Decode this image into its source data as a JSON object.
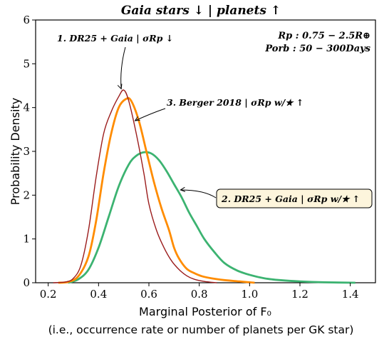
{
  "chart_data": {
    "type": "line",
    "title": "Gaia stars ↓ | planets ↑",
    "xlabel": "Marginal Posterior of F₀",
    "xlabel_sub": "(i.e., occurrence rate or number of planets per GK star)",
    "ylabel": "Probability Density",
    "xlim": [
      0.15,
      1.5
    ],
    "ylim": [
      0,
      6
    ],
    "xticks": [
      "0.2",
      "0.4",
      "0.6",
      "0.8",
      "1.0",
      "1.2",
      "1.4"
    ],
    "yticks": [
      "0",
      "1",
      "2",
      "3",
      "4",
      "5",
      "6"
    ],
    "grid": false,
    "params_box": {
      "line1": "Rp : 0.75 − 2.5R⊕",
      "line2": "Porb : 50 − 300Days"
    },
    "annotations": [
      {
        "text": "1. DR25 + Gaia | σRp ↓",
        "x": 0.49,
        "y": 4.38
      },
      {
        "text": "3. Berger 2018 | σRp w/★ ↑",
        "x": 0.545,
        "y": 3.7
      },
      {
        "text": "2. DR25 + Gaia | σRp w/★ ↑",
        "x": 0.72,
        "y": 2.12
      }
    ],
    "series": [
      {
        "color": "#9b1c1c",
        "x": [
          0.22,
          0.27,
          0.3,
          0.33,
          0.36,
          0.39,
          0.42,
          0.45,
          0.48,
          0.5,
          0.52,
          0.55,
          0.58,
          0.6,
          0.63,
          0.66,
          0.69,
          0.72,
          0.75,
          0.78,
          0.82,
          0.87
        ],
        "y": [
          0.0,
          0.02,
          0.1,
          0.4,
          1.2,
          2.4,
          3.4,
          3.9,
          4.25,
          4.4,
          4.15,
          3.4,
          2.5,
          1.8,
          1.2,
          0.8,
          0.5,
          0.3,
          0.16,
          0.08,
          0.03,
          0.0
        ]
      },
      {
        "color": "#ff8c00",
        "x": [
          0.24,
          0.28,
          0.32,
          0.36,
          0.39,
          0.42,
          0.45,
          0.48,
          0.51,
          0.53,
          0.56,
          0.59,
          0.62,
          0.65,
          0.68,
          0.7,
          0.72,
          0.75,
          0.78,
          0.81,
          0.85,
          0.9,
          0.96,
          1.02
        ],
        "y": [
          0.0,
          0.02,
          0.15,
          0.6,
          1.4,
          2.5,
          3.4,
          4.0,
          4.2,
          4.15,
          3.7,
          3.0,
          2.3,
          1.7,
          1.2,
          0.8,
          0.55,
          0.32,
          0.22,
          0.15,
          0.1,
          0.06,
          0.03,
          0.0
        ]
      },
      {
        "color": "#3cb371",
        "x": [
          0.28,
          0.32,
          0.36,
          0.4,
          0.44,
          0.48,
          0.52,
          0.55,
          0.58,
          0.61,
          0.64,
          0.67,
          0.7,
          0.73,
          0.76,
          0.79,
          0.82,
          0.86,
          0.9,
          0.95,
          1.0,
          1.06,
          1.12,
          1.2,
          1.3,
          1.42
        ],
        "y": [
          0.0,
          0.08,
          0.3,
          0.8,
          1.5,
          2.2,
          2.7,
          2.9,
          2.98,
          2.95,
          2.8,
          2.55,
          2.25,
          1.95,
          1.6,
          1.3,
          1.0,
          0.7,
          0.45,
          0.28,
          0.18,
          0.1,
          0.06,
          0.03,
          0.01,
          0.0
        ]
      }
    ]
  }
}
